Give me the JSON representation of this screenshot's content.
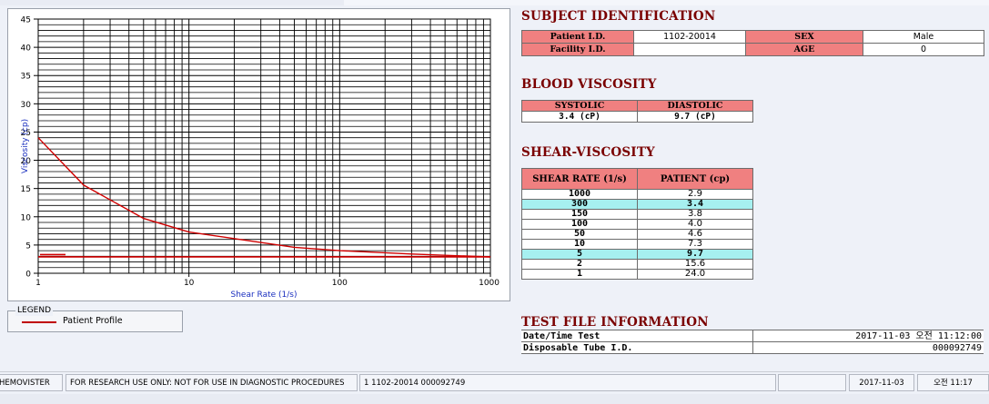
{
  "chart_data": {
    "type": "line",
    "xlabel": "Shear Rate (1/s)",
    "ylabel": "Viscosity (cp)",
    "x_scale": "log",
    "xlim": [
      1,
      1000
    ],
    "ylim": [
      0,
      45
    ],
    "x_ticks": [
      "1",
      "10",
      "100",
      "1000"
    ],
    "y_ticks": [
      "0",
      "5",
      "10",
      "15",
      "20",
      "25",
      "30",
      "35",
      "40",
      "45"
    ],
    "grid": true,
    "series": [
      {
        "name": "Patient Profile",
        "color": "#d00000",
        "x": [
          1,
          2,
          5,
          10,
          50,
          100,
          150,
          300,
          1000
        ],
        "y": [
          24.0,
          15.6,
          9.7,
          7.3,
          4.6,
          4.0,
          3.8,
          3.4,
          2.9
        ]
      }
    ],
    "reference_line": {
      "x": [
        1,
        1000
      ],
      "y": [
        2.9,
        2.9
      ],
      "color": "#d00000"
    }
  },
  "legend": {
    "title": "LEGEND",
    "entries": [
      {
        "label": "Patient Profile",
        "color": "#d00000"
      }
    ]
  },
  "subject": {
    "title": "SUBJECT IDENTIFICATION",
    "patient_id_label": "Patient I.D.",
    "patient_id": "1102-20014",
    "sex_label": "SEX",
    "sex": "Male",
    "facility_id_label": "Facility I.D.",
    "facility_id": "",
    "age_label": "AGE",
    "age": "0"
  },
  "blood": {
    "title": "BLOOD VISCOSITY",
    "systolic_label": "SYSTOLIC",
    "diastolic_label": "DIASTOLIC",
    "systolic": "3.4 (cP)",
    "diastolic": "9.7 (cP)"
  },
  "shear": {
    "title": "SHEAR-VISCOSITY",
    "col_rate": "SHEAR RATE (1/s)",
    "col_patient": "PATIENT (cp)",
    "rows": [
      {
        "rate": "1000",
        "patient": "2.9",
        "highlight": false
      },
      {
        "rate": "300",
        "patient": "3.4",
        "highlight": true
      },
      {
        "rate": "150",
        "patient": "3.8",
        "highlight": false
      },
      {
        "rate": "100",
        "patient": "4.0",
        "highlight": false
      },
      {
        "rate": "50",
        "patient": "4.6",
        "highlight": false
      },
      {
        "rate": "10",
        "patient": "7.3",
        "highlight": false
      },
      {
        "rate": "5",
        "patient": "9.7",
        "highlight": true
      },
      {
        "rate": "2",
        "patient": "15.6",
        "highlight": false
      },
      {
        "rate": "1",
        "patient": "24.0",
        "highlight": false
      }
    ]
  },
  "file_info": {
    "title": "TEST FILE INFORMATION",
    "datetime_label": "Date/Time Test",
    "datetime": "2017-11-03  오전 11:12:00",
    "tube_label": "Disposable Tube I.D.",
    "tube": "000092749"
  },
  "status": {
    "app": "HEMOVISTER",
    "disclaimer": "FOR RESEARCH USE ONLY: NOT FOR USE IN DIAGNOSTIC PROCEDURES",
    "record": "1  1102-20014  000092749",
    "empty": "",
    "date": "2017-11-03",
    "time": "오전 11:17"
  },
  "colors": {
    "header_red": "#f08080",
    "highlight_cyan": "#a6f0f0",
    "title_maroon": "#7a0000",
    "curve_red": "#d00000"
  }
}
